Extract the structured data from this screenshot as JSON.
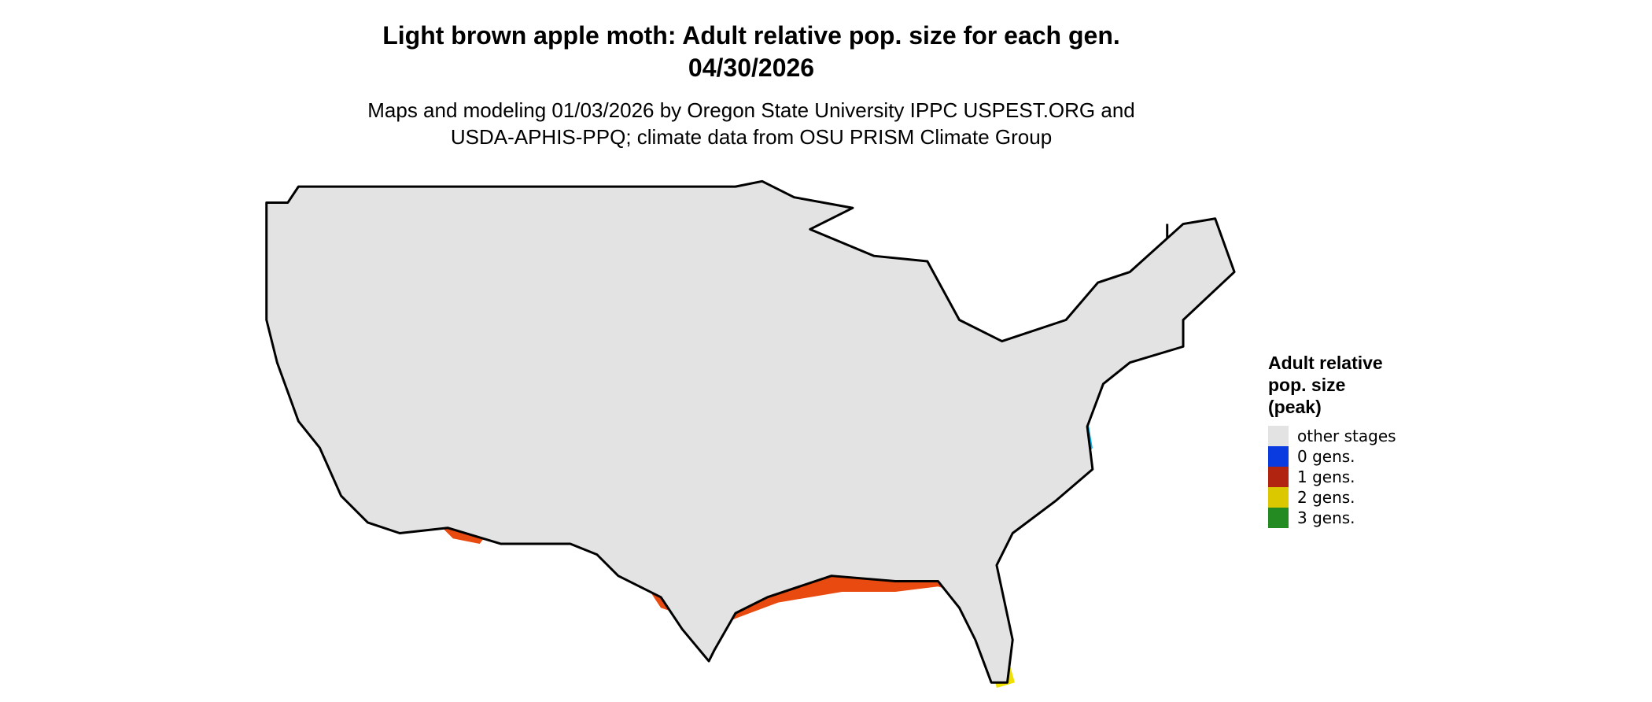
{
  "header": {
    "title": [
      "Light brown apple moth: Adult relative pop. size for each gen.",
      "04/30/2026"
    ],
    "subtitle": [
      "Maps and modeling 01/03/2026 by Oregon State University IPPC USPEST.ORG and",
      "USDA-APHIS-PPQ; climate data from OSU PRISM Climate Group"
    ]
  },
  "legend": {
    "title": [
      "Adult relative",
      "pop. size",
      "(peak)"
    ],
    "items": [
      {
        "label": "other stages",
        "color": "#e3e3e3"
      },
      {
        "label": "0 gens.",
        "color": "#0a3be0"
      },
      {
        "label": "1 gens.",
        "color": "#b02410"
      },
      {
        "label": "2 gens.",
        "color": "#dcc800"
      },
      {
        "label": "3 gens.",
        "color": "#238b22"
      }
    ]
  }
}
